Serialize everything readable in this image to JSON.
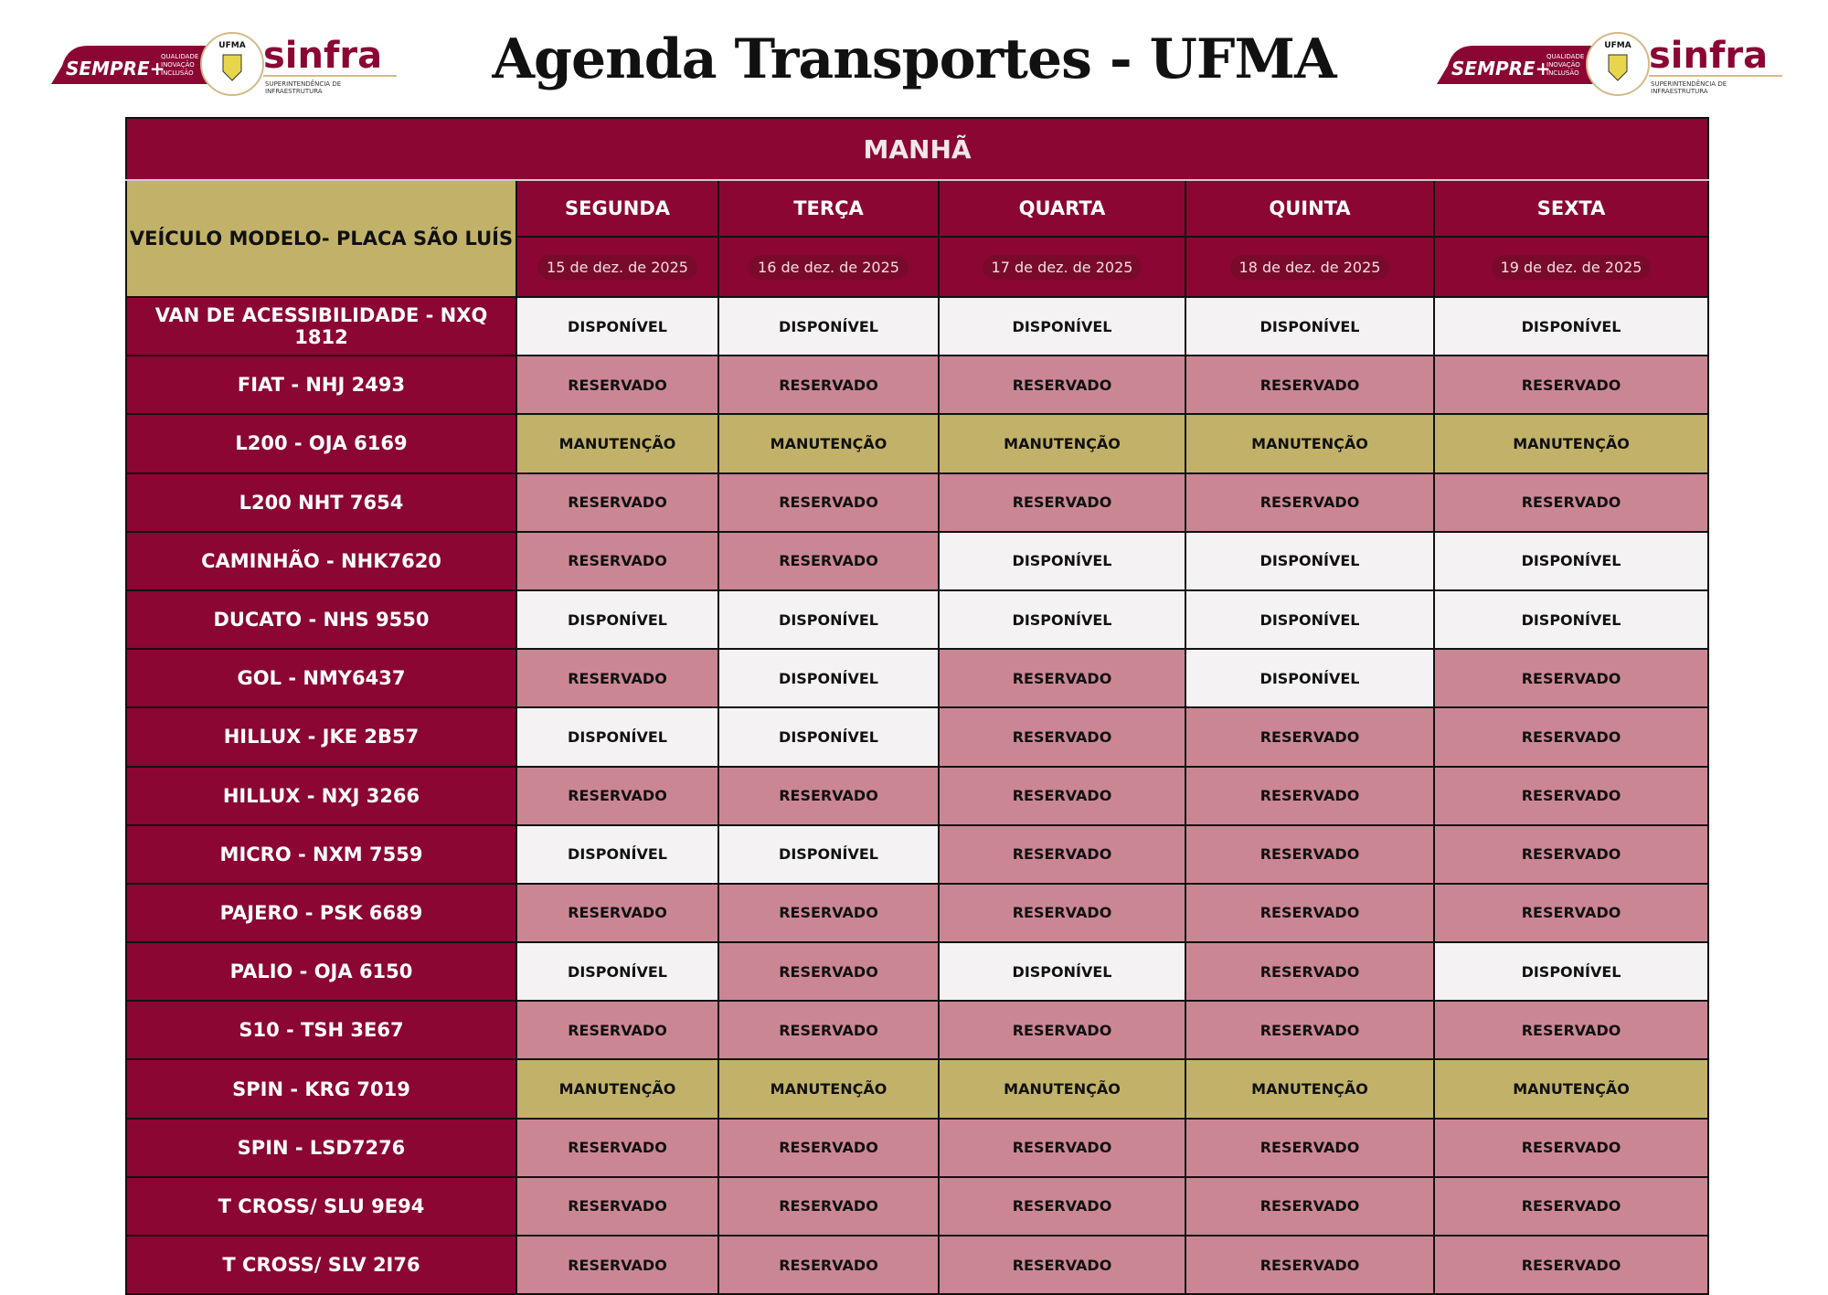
{
  "header": {
    "title": "Agenda Transportes - UFMA",
    "logo_text": [
      "SEMPRE+",
      "QUALIDADE",
      "INOVAÇÃO",
      "INCLUSÃO",
      "UFMA",
      "sinfra",
      "SUPERINTENDÊNCIA DE",
      "INFRAESTRUTURA"
    ]
  },
  "table": {
    "period": "MANHÃ",
    "vehicle_header": "VEÍCULO MODELO- PLACA SÃO LUÍS",
    "days": [
      {
        "name": "SEGUNDA",
        "date": "15 de dez. de 2025"
      },
      {
        "name": "TERÇA",
        "date": "16 de dez. de 2025"
      },
      {
        "name": "QUARTA",
        "date": "17 de dez. de 2025"
      },
      {
        "name": "QUINTA",
        "date": "18 de dez. de 2025"
      },
      {
        "name": "SEXTA",
        "date": "19 de dez. de 2025"
      }
    ],
    "status_labels": {
      "D": "DISPONÍVEL",
      "R": "RESERVADO",
      "M": "MANUTENÇÃO"
    },
    "status_colors": {
      "D": "#F4F2F3",
      "R": "#CB8694",
      "M": "#C2B269"
    },
    "rows": [
      {
        "vehicle": "VAN DE ACESSIBILIDADE - NXQ 1812",
        "status": [
          "DISPONÍVEL",
          "DISPONÍVEL",
          "DISPONÍVEL",
          "DISPONÍVEL",
          "DISPONÍVEL"
        ]
      },
      {
        "vehicle": "FIAT - NHJ 2493",
        "status": [
          "RESERVADO",
          "RESERVADO",
          "RESERVADO",
          "RESERVADO",
          "RESERVADO"
        ]
      },
      {
        "vehicle": "L200 - OJA 6169",
        "status": [
          "MANUTENÇÃO",
          "MANUTENÇÃO",
          "MANUTENÇÃO",
          "MANUTENÇÃO",
          "MANUTENÇÃO"
        ]
      },
      {
        "vehicle": "L200 NHT 7654",
        "status": [
          "RESERVADO",
          "RESERVADO",
          "RESERVADO",
          "RESERVADO",
          "RESERVADO"
        ]
      },
      {
        "vehicle": "CAMINHÃO - NHK7620",
        "status": [
          "RESERVADO",
          "RESERVADO",
          "DISPONÍVEL",
          "DISPONÍVEL",
          "DISPONÍVEL"
        ]
      },
      {
        "vehicle": "DUCATO - NHS 9550",
        "status": [
          "DISPONÍVEL",
          "DISPONÍVEL",
          "DISPONÍVEL",
          "DISPONÍVEL",
          "DISPONÍVEL"
        ]
      },
      {
        "vehicle": "GOL - NMY6437",
        "status": [
          "RESERVADO",
          "DISPONÍVEL",
          "RESERVADO",
          "DISPONÍVEL",
          "RESERVADO"
        ]
      },
      {
        "vehicle": "HILLUX - JKE 2B57",
        "status": [
          "DISPONÍVEL",
          "DISPONÍVEL",
          "RESERVADO",
          "RESERVADO",
          "RESERVADO"
        ]
      },
      {
        "vehicle": "HILLUX - NXJ 3266",
        "status": [
          "RESERVADO",
          "RESERVADO",
          "RESERVADO",
          "RESERVADO",
          "RESERVADO"
        ]
      },
      {
        "vehicle": "MICRO - NXM 7559",
        "status": [
          "DISPONÍVEL",
          "DISPONÍVEL",
          "RESERVADO",
          "RESERVADO",
          "RESERVADO"
        ]
      },
      {
        "vehicle": "PAJERO - PSK 6689",
        "status": [
          "RESERVADO",
          "RESERVADO",
          "RESERVADO",
          "RESERVADO",
          "RESERVADO"
        ]
      },
      {
        "vehicle": "PALIO - OJA 6150",
        "status": [
          "DISPONÍVEL",
          "RESERVADO",
          "DISPONÍVEL",
          "RESERVADO",
          "DISPONÍVEL"
        ]
      },
      {
        "vehicle": "S10 - TSH 3E67",
        "status": [
          "RESERVADO",
          "RESERVADO",
          "RESERVADO",
          "RESERVADO",
          "RESERVADO"
        ]
      },
      {
        "vehicle": "SPIN - KRG 7019",
        "status": [
          "MANUTENÇÃO",
          "MANUTENÇÃO",
          "MANUTENÇÃO",
          "MANUTENÇÃO",
          "MANUTENÇÃO"
        ]
      },
      {
        "vehicle": "SPIN - LSD7276",
        "status": [
          "RESERVADO",
          "RESERVADO",
          "RESERVADO",
          "RESERVADO",
          "RESERVADO"
        ]
      },
      {
        "vehicle": "T CROSS/ SLU 9E94",
        "status": [
          "RESERVADO",
          "RESERVADO",
          "RESERVADO",
          "RESERVADO",
          "RESERVADO"
        ]
      },
      {
        "vehicle": "T CROSS/ SLV 2I76",
        "status": [
          "RESERVADO",
          "RESERVADO",
          "RESERVADO",
          "RESERVADO",
          "RESERVADO"
        ]
      }
    ]
  }
}
